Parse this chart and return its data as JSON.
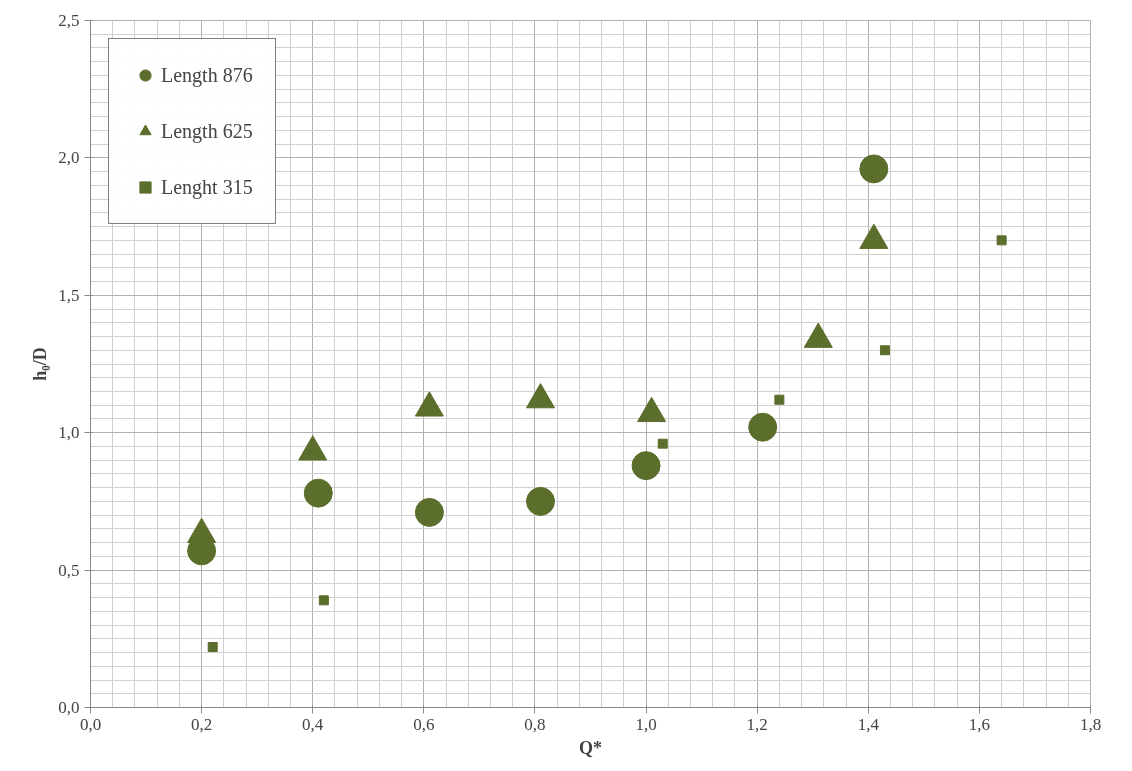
{
  "chart_data": {
    "type": "scatter",
    "xlabel": "Q*",
    "ylabel": "h₀/D",
    "xlim": [
      0,
      1.8
    ],
    "ylim": [
      0,
      2.5
    ],
    "xticks": [
      {
        "value": 0,
        "label": "0,0"
      },
      {
        "value": 0.2,
        "label": "0,2"
      },
      {
        "value": 0.4,
        "label": "0,4"
      },
      {
        "value": 0.6,
        "label": "0,6"
      },
      {
        "value": 0.8,
        "label": "0,8"
      },
      {
        "value": 1.0,
        "label": "1,0"
      },
      {
        "value": 1.2,
        "label": "1,2"
      },
      {
        "value": 1.4,
        "label": "1,4"
      },
      {
        "value": 1.6,
        "label": "1,6"
      },
      {
        "value": 1.8,
        "label": "1,8"
      }
    ],
    "yticks": [
      {
        "value": 0,
        "label": "0,0"
      },
      {
        "value": 0.5,
        "label": "0,5"
      },
      {
        "value": 1.0,
        "label": "1,0"
      },
      {
        "value": 1.5,
        "label": "1,5"
      },
      {
        "value": 2.0,
        "label": "2,0"
      },
      {
        "value": 2.5,
        "label": "2,5"
      }
    ],
    "grid": true,
    "legend": "top left",
    "series": [
      {
        "name": "Length 876",
        "color": "#5b6e2c",
        "marker": "circle",
        "x": [
          0.2,
          0.41,
          0.61,
          0.81,
          1.0,
          1.21,
          1.41
        ],
        "values": [
          0.57,
          0.78,
          0.71,
          0.75,
          0.88,
          1.02,
          1.96
        ]
      },
      {
        "name": "Length 625",
        "color": "#5b6e2c",
        "marker": "triangle",
        "x": [
          0.2,
          0.4,
          0.61,
          0.81,
          1.01,
          1.31,
          1.41
        ],
        "values": [
          0.63,
          0.93,
          1.09,
          1.12,
          1.07,
          1.34,
          1.7
        ]
      },
      {
        "name": "Lenght 315",
        "color": "#5b6e2c",
        "marker": "square",
        "x": [
          0.22,
          0.42,
          1.03,
          1.24,
          1.43,
          1.64
        ],
        "values": [
          0.22,
          0.39,
          0.96,
          1.12,
          1.3,
          1.7
        ]
      }
    ]
  }
}
